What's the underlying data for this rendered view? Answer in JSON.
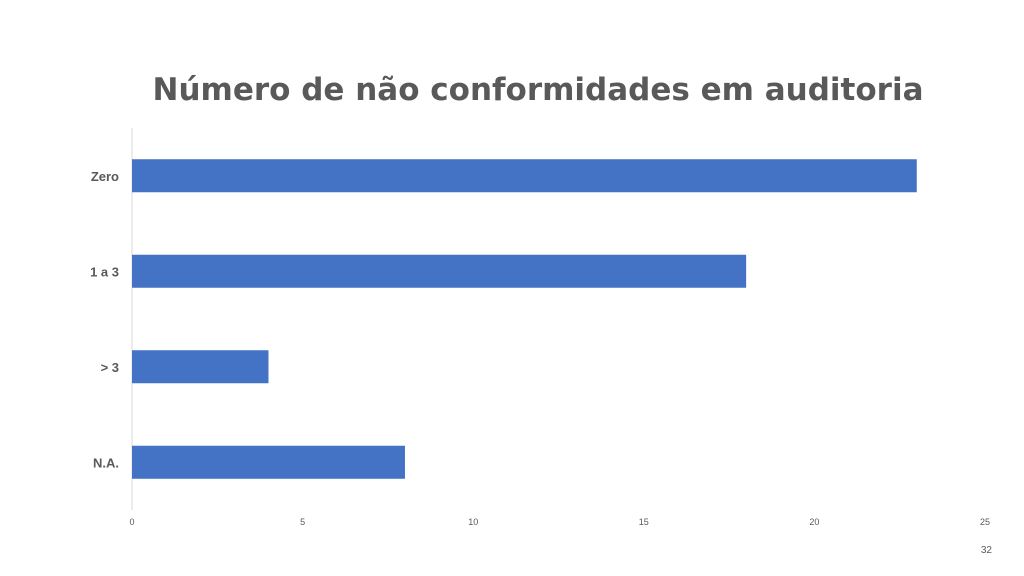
{
  "chart_data": {
    "type": "bar",
    "orientation": "horizontal",
    "title": "Número de não conformidades em auditoria",
    "categories": [
      "Zero",
      "1 a 3",
      "> 3",
      "N.A."
    ],
    "values": [
      23,
      18,
      4,
      8
    ],
    "xlim": [
      0,
      25
    ],
    "xticks": [
      "0",
      "5",
      "10",
      "15",
      "20",
      "25"
    ],
    "xlabel": "",
    "ylabel": "",
    "grid": false,
    "bar_color": "#4472C4"
  },
  "slide": {
    "page_number": "32"
  }
}
